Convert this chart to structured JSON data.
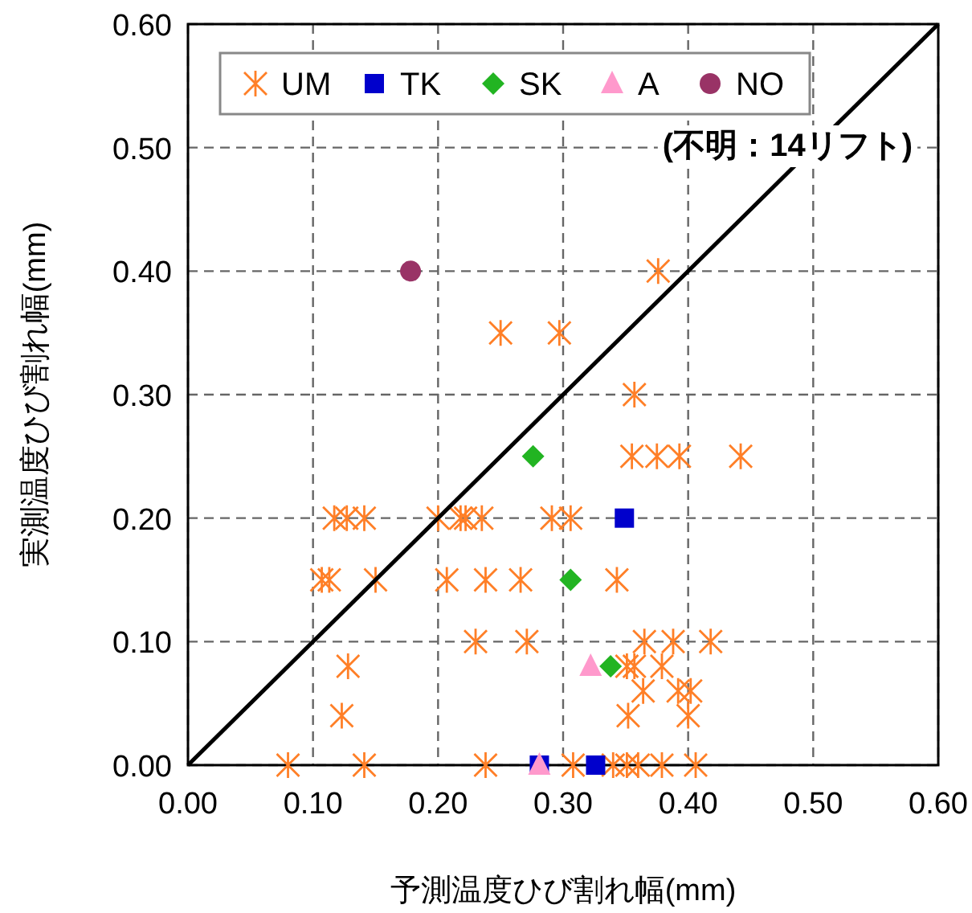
{
  "chart_data": {
    "type": "scatter",
    "xlabel": "予測温度ひび割れ幅(mm)",
    "ylabel": "実測温度ひび割れ幅(mm)",
    "xlim": [
      0,
      0.6
    ],
    "ylim": [
      0,
      0.6
    ],
    "xticks": [
      {
        "value": 0,
        "label": "0.00"
      },
      {
        "value": 0.1,
        "label": "0.10"
      },
      {
        "value": 0.2,
        "label": "0.20"
      },
      {
        "value": 0.3,
        "label": "0.30"
      },
      {
        "value": 0.4,
        "label": "0.40"
      },
      {
        "value": 0.5,
        "label": "0.50"
      },
      {
        "value": 0.6,
        "label": "0.60"
      }
    ],
    "yticks": [
      {
        "value": 0,
        "label": "0.00"
      },
      {
        "value": 0.1,
        "label": "0.10"
      },
      {
        "value": 0.2,
        "label": "0.20"
      },
      {
        "value": 0.3,
        "label": "0.30"
      },
      {
        "value": 0.4,
        "label": "0.40"
      },
      {
        "value": 0.5,
        "label": "0.50"
      },
      {
        "value": 0.6,
        "label": "0.60"
      }
    ],
    "grid": true,
    "legend": "top left",
    "annotations": [
      "(不明：14リフト)"
    ],
    "series": [
      {
        "name": "UM",
        "color": "#ff7f27",
        "marker": "cross",
        "x": [
          0.376,
          0.25,
          0.297,
          0.357,
          0.355,
          0.375,
          0.393,
          0.442,
          0.117,
          0.127,
          0.141,
          0.2,
          0.218,
          0.222,
          0.235,
          0.291,
          0.306,
          0.107,
          0.113,
          0.15,
          0.207,
          0.238,
          0.266,
          0.343,
          0.23,
          0.271,
          0.365,
          0.388,
          0.418,
          0.351,
          0.357,
          0.379,
          0.128,
          0.364,
          0.392,
          0.402,
          0.123,
          0.352,
          0.4,
          0.08,
          0.141,
          0.238,
          0.308,
          0.34,
          0.351,
          0.36,
          0.379,
          0.406
        ],
        "values": [
          0.4,
          0.35,
          0.35,
          0.3,
          0.25,
          0.25,
          0.25,
          0.25,
          0.2,
          0.2,
          0.2,
          0.2,
          0.2,
          0.2,
          0.2,
          0.2,
          0.2,
          0.15,
          0.15,
          0.15,
          0.15,
          0.15,
          0.15,
          0.15,
          0.1,
          0.1,
          0.1,
          0.1,
          0.1,
          0.08,
          0.08,
          0.08,
          0.08,
          0.06,
          0.06,
          0.06,
          0.04,
          0.04,
          0.04,
          0,
          0,
          0,
          0,
          0,
          0,
          0,
          0,
          0
        ]
      },
      {
        "name": "TK",
        "color": "#0000cc",
        "marker": "square",
        "x": [
          0.349,
          0.281,
          0.326
        ],
        "values": [
          0.2,
          0,
          0
        ]
      },
      {
        "name": "SK",
        "color": "#22b422",
        "marker": "diamond",
        "x": [
          0.276,
          0.306,
          0.338
        ],
        "values": [
          0.25,
          0.15,
          0.08
        ]
      },
      {
        "name": "A",
        "color": "#ff99cc",
        "marker": "triangle",
        "x": [
          0.322,
          0.281
        ],
        "values": [
          0.08,
          0
        ]
      },
      {
        "name": "NO",
        "color": "#993366",
        "marker": "circle",
        "x": [
          0.178
        ],
        "values": [
          0.4
        ]
      },
      {
        "type": "line",
        "color": "#000000",
        "marker": "none",
        "x": [
          0,
          0.6
        ],
        "values": [
          0,
          0.6
        ]
      }
    ]
  }
}
